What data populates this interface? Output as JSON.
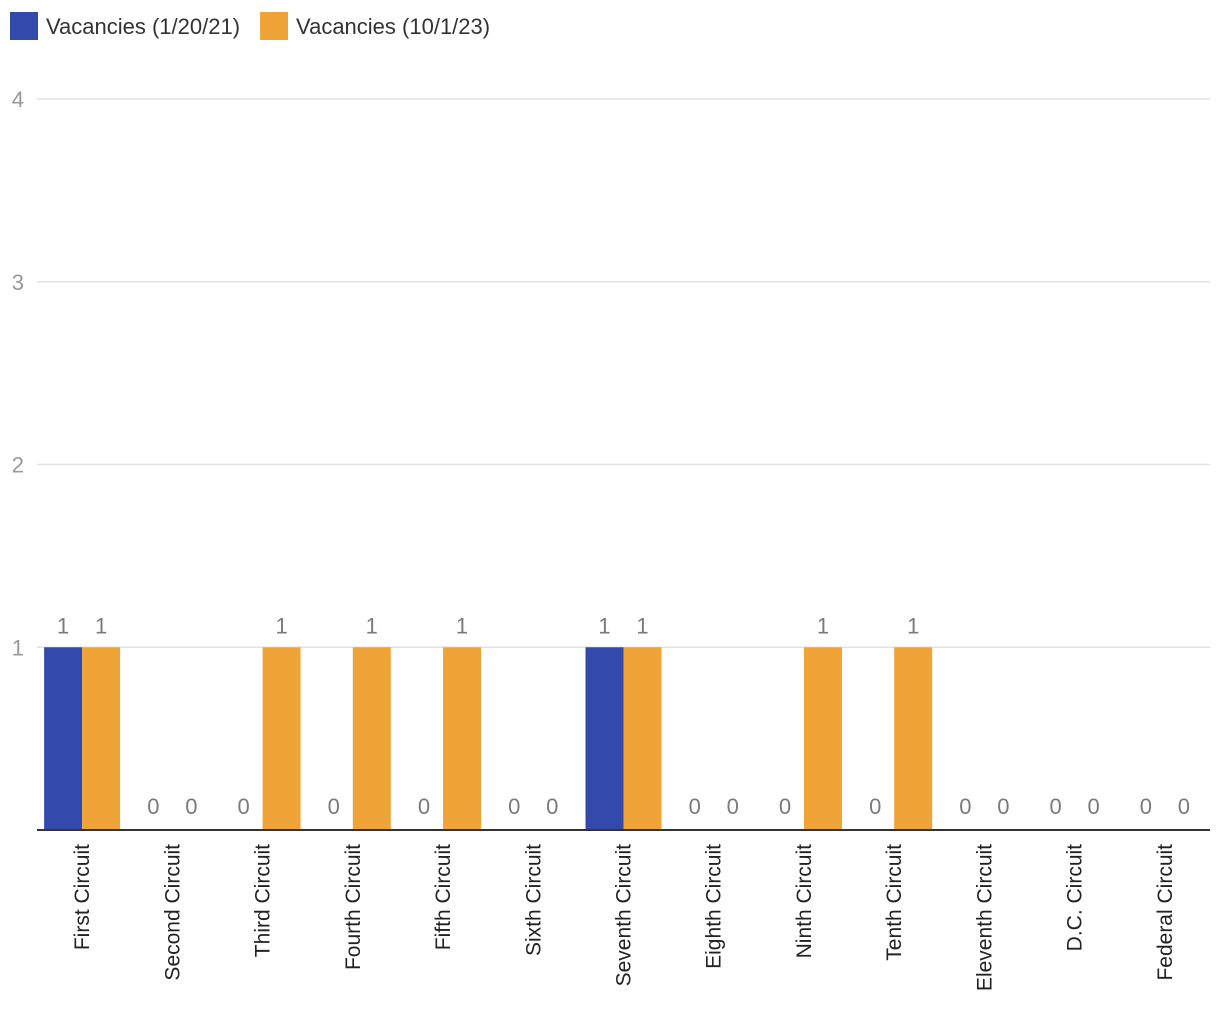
{
  "chart_data": {
    "type": "bar",
    "title": "",
    "xlabel": "",
    "ylabel": "",
    "ylim": [
      0,
      4
    ],
    "yticks": [
      1,
      2,
      3,
      4
    ],
    "grid": true,
    "legend_position": "top-left",
    "categories": [
      "First Circuit",
      "Second Circuit",
      "Third Circuit",
      "Fourth Circuit",
      "Fifth Circuit",
      "Sixth Circuit",
      "Seventh Circuit",
      "Eighth Circuit",
      "Ninth Circuit",
      "Tenth Circuit",
      "Eleventh Circuit",
      "D.C. Circuit",
      "Federal Circuit"
    ],
    "series": [
      {
        "name": "Vacancies (1/20/21)",
        "color": "#334aac",
        "values": [
          1,
          0,
          0,
          0,
          0,
          0,
          1,
          0,
          0,
          0,
          0,
          0,
          0
        ]
      },
      {
        "name": "Vacancies (10/1/23)",
        "color": "#f0a337",
        "values": [
          1,
          0,
          1,
          1,
          1,
          0,
          1,
          0,
          1,
          1,
          0,
          0,
          0
        ]
      }
    ]
  }
}
